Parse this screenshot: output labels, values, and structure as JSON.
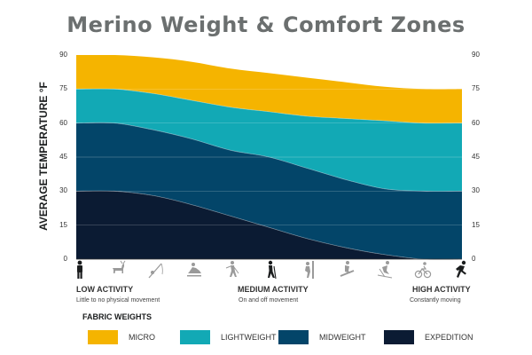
{
  "chart_data": {
    "type": "area",
    "title": "Merino Weight & Comfort Zones",
    "ylabel": "AVERAGE TEMPERATURE °F",
    "ylim": [
      0,
      90
    ],
    "yticks": [
      0,
      15,
      30,
      45,
      60,
      75,
      90
    ],
    "x": [
      0,
      1,
      2,
      3,
      4,
      5,
      6,
      7,
      8,
      9,
      10
    ],
    "x_meaning": [
      "LOW ACTIVITY",
      "MEDIUM ACTIVITY",
      "HIGH ACTIVITY"
    ],
    "grid": true,
    "legend_title": "FABRIC WEIGHTS",
    "legend_position": "bottom",
    "series": [
      {
        "name": "MICRO",
        "color": "#f5b400",
        "upper": [
          90,
          90,
          89,
          87,
          84,
          82,
          80,
          78,
          76,
          75,
          75
        ],
        "lower": [
          75,
          75,
          73,
          70,
          67,
          65,
          63,
          62,
          61,
          60,
          60
        ]
      },
      {
        "name": "LIGHTWEIGHT",
        "color": "#12a9b5",
        "upper": [
          75,
          75,
          73,
          70,
          67,
          65,
          63,
          62,
          61,
          60,
          60
        ],
        "lower": [
          60,
          60,
          57,
          53,
          48,
          45,
          40,
          35,
          31,
          30,
          30
        ]
      },
      {
        "name": "MIDWEIGHT",
        "color": "#034569",
        "upper": [
          60,
          60,
          57,
          53,
          48,
          45,
          40,
          35,
          31,
          30,
          30
        ],
        "lower": [
          30,
          30,
          28,
          24,
          19,
          14,
          9,
          5,
          2,
          0,
          0
        ]
      },
      {
        "name": "EXPEDITION",
        "color": "#0b1b33",
        "upper": [
          30,
          30,
          28,
          24,
          19,
          14,
          9,
          5,
          2,
          0,
          0
        ],
        "lower": [
          0,
          0,
          0,
          0,
          0,
          0,
          0,
          0,
          0,
          0,
          0
        ]
      }
    ]
  },
  "activity": {
    "low_label": "LOW ACTIVITY",
    "low_sub": "Little to no physical movement",
    "medium_label": "MEDIUM ACTIVITY",
    "medium_sub": "On and off movement",
    "high_label": "HIGH ACTIVITY",
    "high_sub": "Constantly moving",
    "icons": [
      {
        "name": "standing-icon",
        "color": "#1b1d1e"
      },
      {
        "name": "hunting-icon",
        "color": "#9a9a9a"
      },
      {
        "name": "fishing-icon",
        "color": "#9a9a9a"
      },
      {
        "name": "snowmobile-icon",
        "color": "#9a9a9a"
      },
      {
        "name": "snowshoe-icon",
        "color": "#9a9a9a"
      },
      {
        "name": "hiking-icon",
        "color": "#1b1d1e"
      },
      {
        "name": "climbing-icon",
        "color": "#9a9a9a"
      },
      {
        "name": "snowboarding-icon",
        "color": "#9a9a9a"
      },
      {
        "name": "skiing-icon",
        "color": "#9a9a9a"
      },
      {
        "name": "cycling-icon",
        "color": "#9a9a9a"
      },
      {
        "name": "running-icon",
        "color": "#1b1d1e"
      }
    ]
  }
}
